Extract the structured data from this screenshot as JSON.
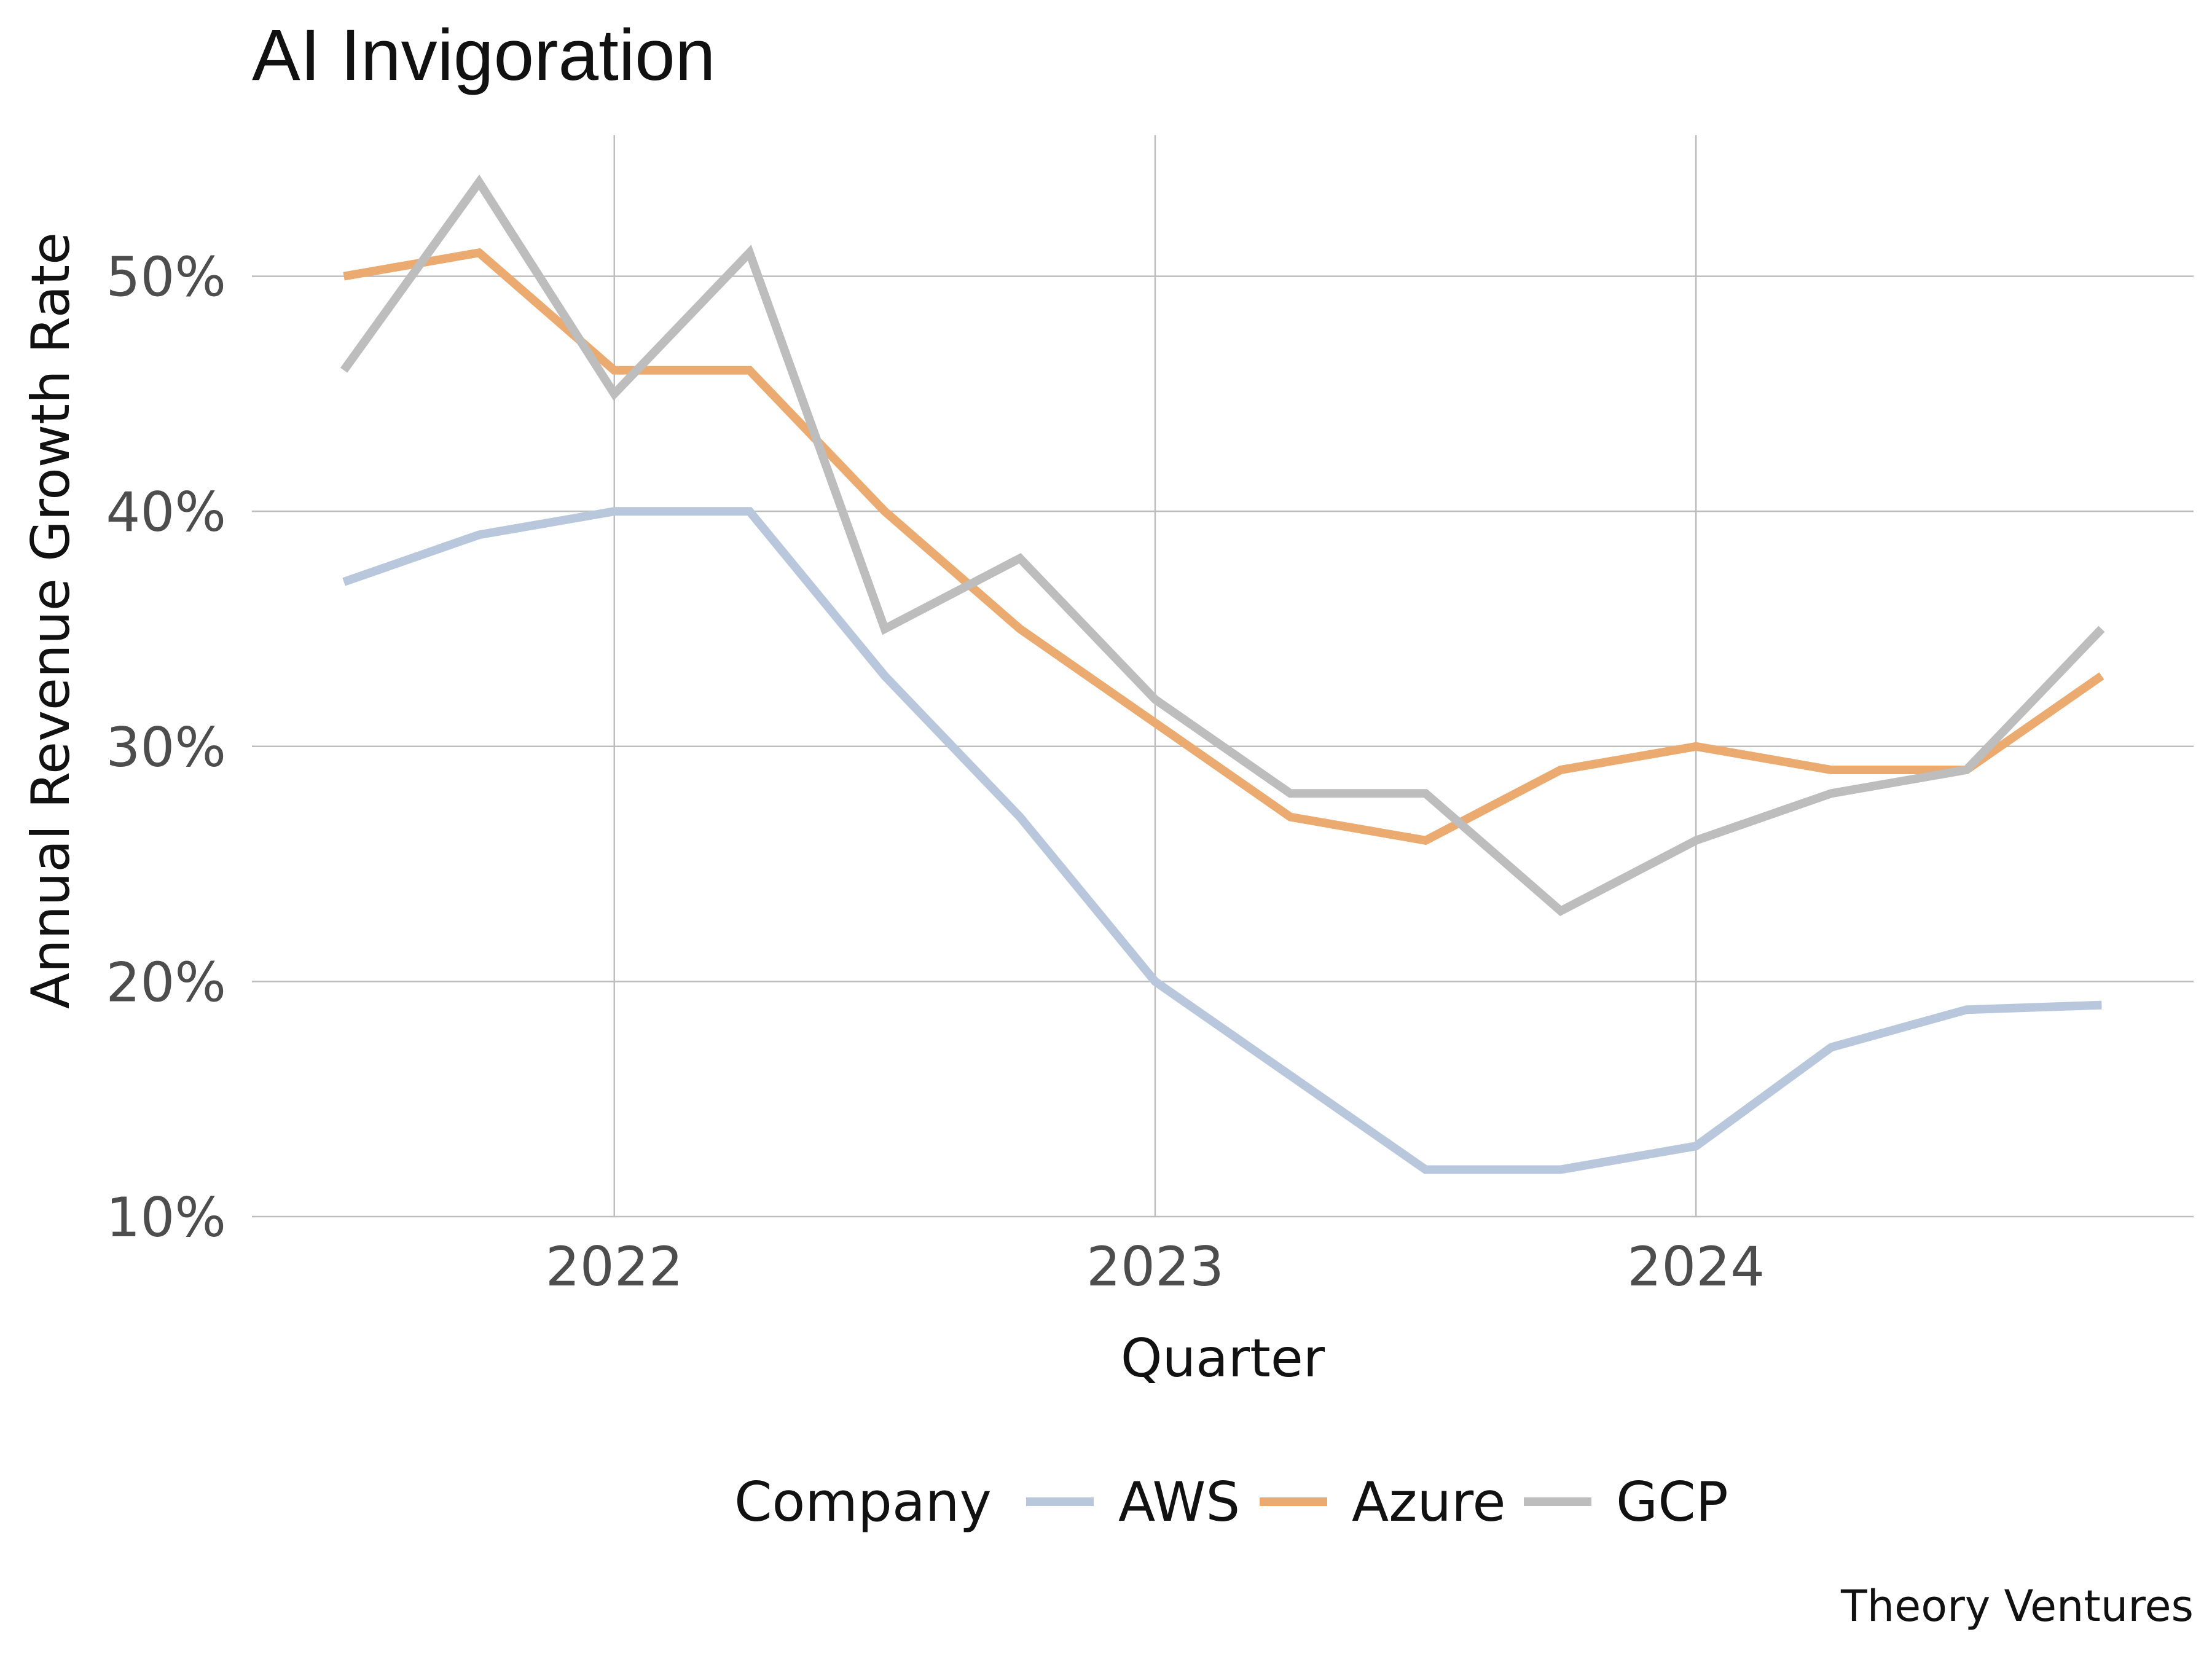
{
  "chart_data": {
    "type": "line",
    "title": "AI Invigoration",
    "xlabel": "Quarter",
    "ylabel": "Annual Revenue Growth Rate",
    "caption": "Theory Ventures",
    "x": [
      2021.5,
      2021.75,
      2022.0,
      2022.25,
      2022.5,
      2022.75,
      2023.0,
      2023.25,
      2023.5,
      2023.75,
      2024.0,
      2024.25,
      2024.5,
      2024.75
    ],
    "xlim": [
      2021.33,
      2024.92
    ],
    "ylim": [
      10,
      56
    ],
    "x_ticks": [
      2022,
      2023,
      2024
    ],
    "x_tick_labels": [
      "2022",
      "2023",
      "2024"
    ],
    "y_ticks": [
      10,
      20,
      30,
      40,
      50
    ],
    "y_tick_labels": [
      "10%",
      "20%",
      "30%",
      "40%",
      "50%"
    ],
    "grid": true,
    "legend": {
      "title": "Company",
      "position": "bottom",
      "entries": [
        "AWS",
        "Azure",
        "GCP"
      ]
    },
    "series": [
      {
        "name": "AWS",
        "color": "#b8c7dc",
        "values": [
          37,
          39,
          40,
          40,
          33,
          27,
          20,
          16,
          12,
          12,
          13,
          17.2,
          18.8,
          19
        ]
      },
      {
        "name": "Azure",
        "color": "#ebaa6f",
        "values": [
          50,
          51,
          46,
          46,
          40,
          35,
          31,
          27,
          26,
          29,
          30,
          29,
          29,
          33
        ]
      },
      {
        "name": "GCP",
        "color": "#bdbdbd",
        "values": [
          46,
          54,
          45,
          51,
          35,
          38,
          32,
          28,
          28,
          23,
          26,
          28,
          29,
          35
        ]
      }
    ]
  }
}
